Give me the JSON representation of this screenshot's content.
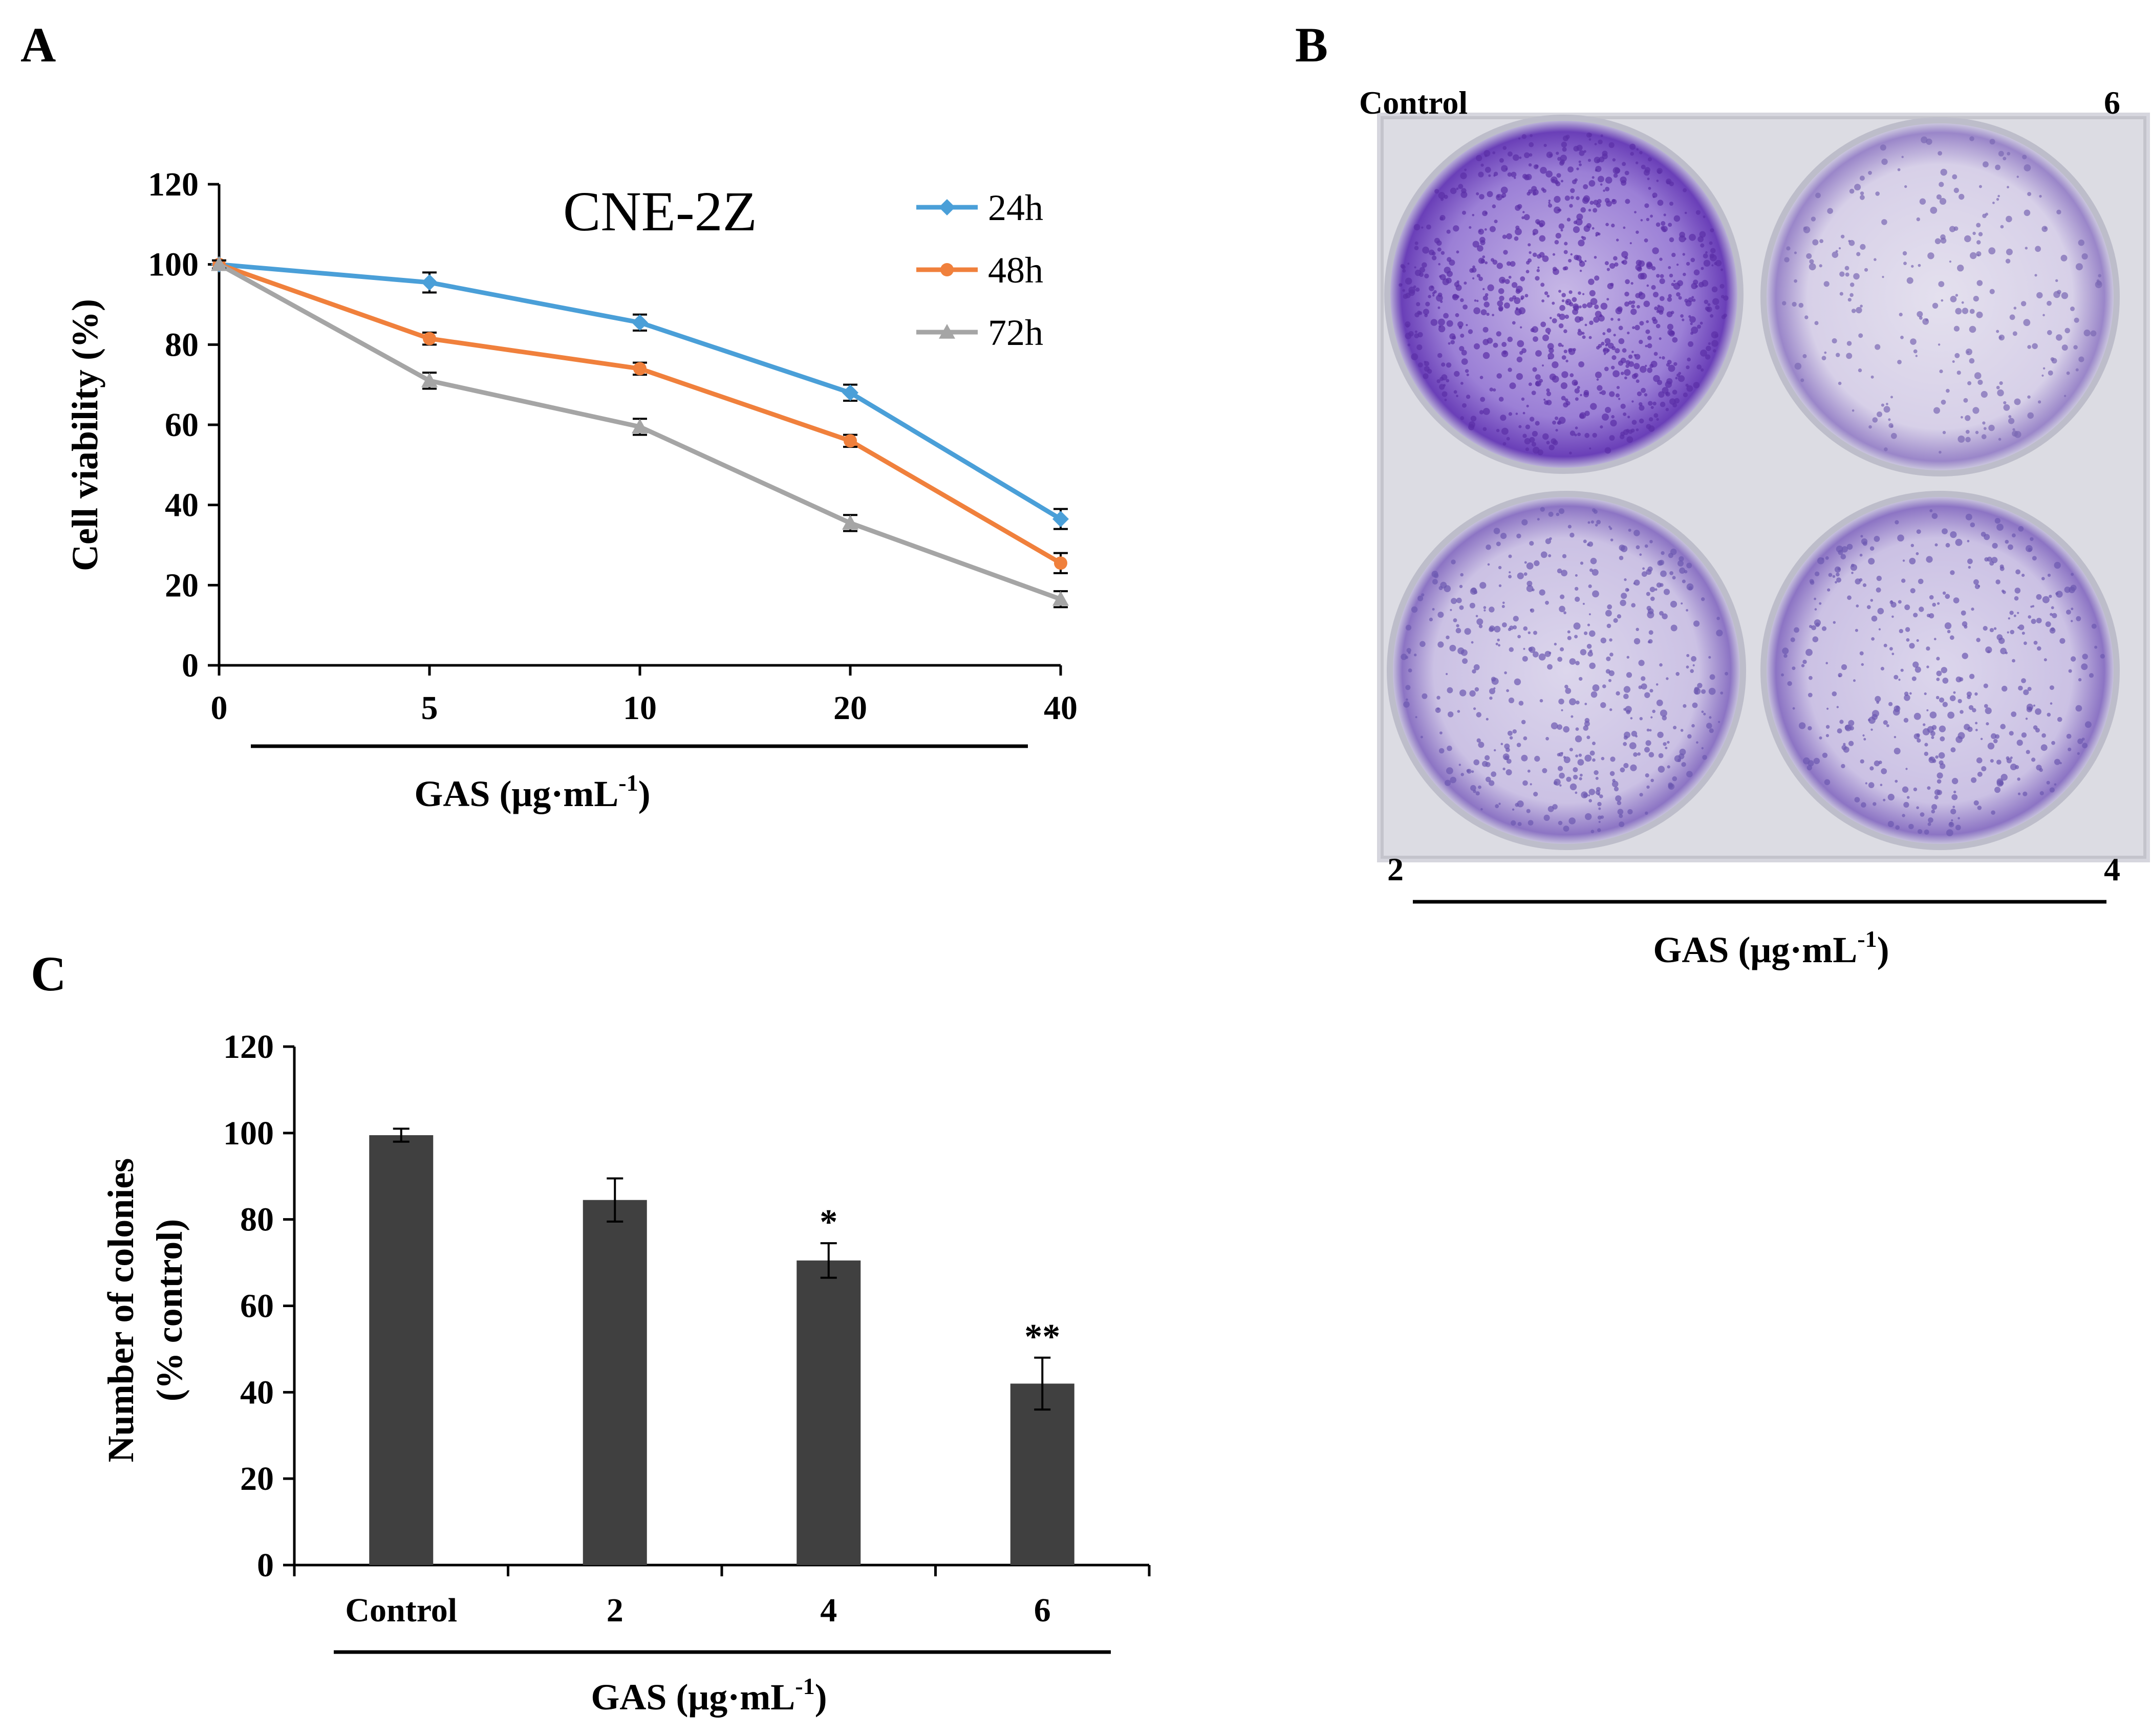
{
  "panels": {
    "a": "A",
    "b": "B",
    "c": "C"
  },
  "chart_data": [
    {
      "type": "line",
      "title": "CNE-2Z",
      "categories": [
        "0",
        "5",
        "10",
        "20",
        "40"
      ],
      "xlabel": "GAS (μg·mL",
      "xlabel_sup": "-1",
      "xlabel_close": ")",
      "ylabel": "Cell viability (%)",
      "ylim": [
        0,
        120
      ],
      "yticks": [
        "0",
        "20",
        "40",
        "60",
        "80",
        "100",
        "120"
      ],
      "legend_position": "top-right",
      "series": [
        {
          "name": "24h",
          "color": "#4a9fd8",
          "marker": "diamond",
          "values": [
            100,
            95.5,
            85.5,
            68,
            36.5
          ],
          "errors": [
            1.0,
            2.5,
            2.0,
            2.0,
            2.5
          ]
        },
        {
          "name": "48h",
          "color": "#f0803c",
          "marker": "circle",
          "values": [
            100,
            81.5,
            74,
            56,
            25.5
          ],
          "errors": [
            1.0,
            1.5,
            1.5,
            1.5,
            2.5
          ]
        },
        {
          "name": "72h",
          "color": "#a5a5a5",
          "marker": "triangle",
          "values": [
            100,
            71,
            59.5,
            35.5,
            16.5
          ],
          "errors": [
            1.0,
            2.0,
            2.0,
            2.0,
            2.0
          ]
        }
      ]
    },
    {
      "type": "bar",
      "categories": [
        "Control",
        "2",
        "4",
        "6"
      ],
      "values": [
        99.5,
        84.5,
        70.5,
        42
      ],
      "errors": [
        1.5,
        5.0,
        4.0,
        6.0
      ],
      "significance": [
        "",
        "",
        "*",
        "**"
      ],
      "xlabel": "GAS (μg·mL",
      "xlabel_sup": "-1",
      "xlabel_close": ")",
      "ylabel_line1": "Number of colonies",
      "ylabel_line2": "(% control)",
      "ylim": [
        0,
        120
      ],
      "yticks": [
        "0",
        "20",
        "40",
        "60",
        "80",
        "100",
        "120"
      ],
      "bar_color": "#404040"
    }
  ],
  "plate": {
    "labels": {
      "top_left": "Control",
      "top_right": "6",
      "bottom_left": "2",
      "bottom_right": "4"
    },
    "xlabel": "GAS (μg·mL",
    "xlabel_sup": "-1",
    "xlabel_close": ")"
  },
  "colors": {
    "stain": "#6a3fb8",
    "plate_bg": "#d6d6de"
  }
}
